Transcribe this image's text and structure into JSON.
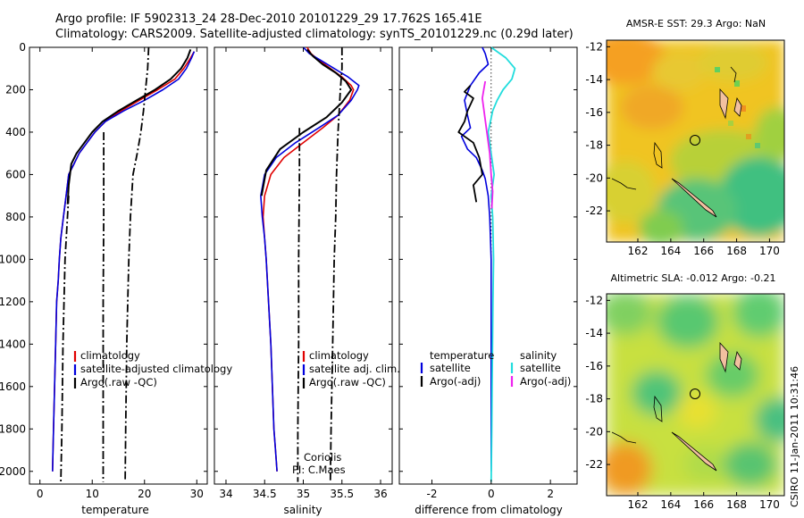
{
  "title_line1": "Argo profile: IF 5902313_24 28-Dec-2010 20101229_29 17.762S 165.41E",
  "title_line2": "Climatology: CARS2009. Satellite-adjusted climatology: synTS_20101229.nc (0.29d later)",
  "side_stamp": "CSIRO 11-Jan-2011 10:31:46",
  "colors": {
    "climatology": "#e00000",
    "satellite": "#0000dd",
    "argo": "#000000",
    "sal_sat": "#22dddd",
    "sal_argo": "#ee22ee"
  },
  "chart_data": [
    {
      "type": "line",
      "xlabel": "temperature",
      "xlim": [
        -2,
        32
      ],
      "ylim": [
        2060,
        0
      ],
      "y_reversed": true,
      "xticks": [
        0,
        10,
        20,
        30
      ],
      "yticks": [
        0,
        200,
        400,
        600,
        800,
        1000,
        1200,
        1400,
        1600,
        1800,
        2000
      ],
      "legend": {
        "entries": [
          "climatology",
          "satellite-adjusted climatology",
          "Argo(.raw -QC)"
        ],
        "placement": "lower-center"
      },
      "series": [
        {
          "name": "climatology",
          "x": [
            29.5,
            28.8,
            27.5,
            25.8,
            22.5,
            19,
            15.5,
            12.5,
            10.5,
            9,
            7.5,
            6.5,
            5.5,
            5,
            4.5,
            4,
            3.7,
            3.5,
            3.2,
            3,
            2.8,
            2.6,
            2.4
          ],
          "y": [
            20,
            50,
            100,
            150,
            200,
            250,
            300,
            350,
            400,
            450,
            500,
            550,
            600,
            700,
            800,
            900,
            1000,
            1100,
            1200,
            1400,
            1600,
            1800,
            2000
          ]
        },
        {
          "name": "satellite-adjusted climatology",
          "x": [
            29.5,
            29,
            28,
            26.5,
            23.5,
            20,
            16,
            12.5,
            10.5,
            9,
            7.5,
            6.5,
            5.5,
            5,
            4.5,
            4,
            3.7,
            3.5,
            3.2,
            3,
            2.8,
            2.6,
            2.4
          ],
          "y": [
            20,
            50,
            100,
            150,
            200,
            250,
            300,
            350,
            400,
            450,
            500,
            550,
            600,
            700,
            800,
            900,
            1000,
            1100,
            1200,
            1400,
            1600,
            1800,
            2000
          ]
        },
        {
          "name": "Argo(.raw -QC)",
          "x": [
            28.8,
            28.2,
            27,
            25,
            22,
            18.5,
            15,
            12,
            10,
            8.5,
            7,
            6,
            5.5,
            5.3
          ],
          "y": [
            10,
            50,
            100,
            150,
            200,
            250,
            300,
            350,
            400,
            450,
            500,
            550,
            650,
            740
          ]
        },
        {
          "name": "",
          "x": [
            20.8,
            20.6,
            20.2,
            19.8,
            19.3,
            18.6,
            17.8,
            17.3,
            17,
            16.8,
            16.6,
            16.5,
            16.4,
            16.3
          ],
          "y": [
            0,
            100,
            200,
            300,
            400,
            500,
            600,
            800,
            1000,
            1200,
            1400,
            1600,
            1800,
            2050
          ]
        },
        {
          "name": "",
          "x": [
            12.2,
            12.2,
            12.1,
            12.1,
            12.1
          ],
          "y": [
            400,
            800,
            1200,
            1600,
            2050
          ]
        },
        {
          "name": "",
          "x": [
            5.5,
            4.8,
            4.4,
            4.2,
            4
          ],
          "y": [
            700,
            1000,
            1400,
            1800,
            2050
          ]
        }
      ]
    },
    {
      "type": "line",
      "xlabel": "salinity",
      "xlim": [
        33.85,
        36.15
      ],
      "ylim": [
        2060,
        0
      ],
      "y_reversed": true,
      "xticks": [
        34,
        34.5,
        35,
        35.5,
        36
      ],
      "legend": {
        "entries": [
          "climatology",
          "satellite adj. clim.",
          "Argo(.raw -QC)"
        ],
        "placement": "lower-center"
      },
      "annotation": [
        "Coriolis",
        "PI: C.Maes"
      ],
      "series": [
        {
          "name": "climatology",
          "x": [
            35.05,
            35.1,
            35.2,
            35.35,
            35.5,
            35.62,
            35.65,
            35.6,
            35.45,
            35.25,
            35.0,
            34.75,
            34.58,
            34.5,
            34.48,
            34.5,
            34.52,
            34.55,
            34.58,
            34.6,
            34.62,
            34.64,
            34.66
          ],
          "y": [
            0,
            30,
            60,
            100,
            140,
            180,
            200,
            250,
            320,
            380,
            450,
            520,
            600,
            700,
            800,
            900,
            1000,
            1200,
            1400,
            1600,
            1800,
            1900,
            2000
          ]
        },
        {
          "name": "satellite adj. clim.",
          "x": [
            35.0,
            35.08,
            35.22,
            35.4,
            35.58,
            35.72,
            35.7,
            35.62,
            35.45,
            35.2,
            34.9,
            34.65,
            34.5,
            34.45,
            34.47,
            34.5,
            34.52,
            34.55,
            34.58,
            34.6,
            34.62,
            34.64,
            34.66
          ],
          "y": [
            0,
            30,
            60,
            100,
            140,
            180,
            200,
            250,
            320,
            380,
            450,
            520,
            600,
            700,
            800,
            900,
            1000,
            1200,
            1400,
            1600,
            1800,
            1900,
            2000
          ]
        },
        {
          "name": "Argo(.raw -QC)",
          "x": [
            35.05,
            35.12,
            35.25,
            35.42,
            35.55,
            35.62,
            35.5,
            35.3,
            35.0,
            34.7,
            34.52,
            34.46
          ],
          "y": [
            10,
            40,
            80,
            120,
            160,
            200,
            260,
            330,
            400,
            480,
            580,
            700
          ]
        },
        {
          "name": "",
          "x": [
            35.5,
            35.5,
            35.48,
            35.45,
            35.43,
            35.42,
            35.4,
            35.38,
            35.36,
            35.35
          ],
          "y": [
            0,
            100,
            200,
            400,
            600,
            800,
            1000,
            1400,
            1800,
            2050
          ]
        },
        {
          "name": "",
          "x": [
            34.95,
            34.95,
            34.94,
            34.94,
            34.93,
            34.93
          ],
          "y": [
            380,
            600,
            1000,
            1400,
            1800,
            2050
          ]
        }
      ]
    },
    {
      "type": "line",
      "xlabel": "difference from climatology",
      "xlim": [
        -3.1,
        2.9
      ],
      "ylim": [
        2060,
        0
      ],
      "y_reversed": true,
      "xticks": [
        -2,
        0,
        2
      ],
      "legend": {
        "columns": [
          {
            "heading": "temperature",
            "entries": [
              "satellite",
              "Argo(-adj)"
            ]
          },
          {
            "heading": "salinity",
            "entries": [
              "satellite",
              "Argo(-adj)"
            ]
          }
        ],
        "placement": "lower-center"
      },
      "series": [
        {
          "name": "temperature satellite",
          "x": [
            -0.3,
            -0.2,
            -0.1,
            -0.4,
            -0.7,
            -0.9,
            -0.8,
            -0.7,
            -1.0,
            -0.8,
            -0.5,
            -0.3,
            -0.2,
            -0.1,
            -0.05,
            0.0,
            0.0,
            0.0
          ],
          "y": [
            0,
            30,
            80,
            120,
            180,
            250,
            320,
            380,
            420,
            480,
            520,
            580,
            620,
            700,
            800,
            1000,
            1500,
            2000
          ]
        },
        {
          "name": "temperature Argo(-adj)",
          "x": [
            -0.7,
            -0.9,
            -0.6,
            -0.8,
            -0.9,
            -1.1,
            -0.6,
            -0.4,
            -0.3,
            -0.6,
            -0.5
          ],
          "y": [
            180,
            210,
            240,
            300,
            350,
            400,
            450,
            520,
            600,
            650,
            730
          ]
        },
        {
          "name": "salinity satellite",
          "x": [
            0.0,
            0.5,
            0.8,
            0.7,
            0.4,
            0.2,
            0.05,
            -0.1,
            0.0,
            0.1,
            0.0,
            0.05,
            0.08,
            0.06,
            0.04,
            0.02,
            0.0
          ],
          "y": [
            0,
            50,
            100,
            150,
            200,
            250,
            300,
            400,
            500,
            600,
            700,
            800,
            1000,
            1200,
            1500,
            1800,
            2050
          ]
        },
        {
          "name": "salinity Argo(-adj)",
          "x": [
            -0.2,
            -0.25,
            -0.3,
            -0.05,
            0.0,
            0.05,
            0.02
          ],
          "y": [
            160,
            200,
            240,
            500,
            600,
            680,
            760
          ]
        }
      ]
    },
    {
      "type": "heatmap",
      "title": "AMSR-E SST: 29.3  Argo: NaN",
      "xticks": [
        162,
        164,
        166,
        168,
        170
      ],
      "yticks": [
        -12,
        -14,
        -16,
        -18,
        -20,
        -22
      ],
      "xlim": [
        160.1,
        170.9
      ],
      "ylim": [
        -23.9,
        -11.6
      ],
      "marker": {
        "lon": 165.41,
        "lat": -17.762
      }
    },
    {
      "type": "heatmap",
      "title": "Altimetric SLA: -0.012  Argo: -0.21",
      "xticks": [
        162,
        164,
        166,
        168,
        170
      ],
      "yticks": [
        -12,
        -14,
        -16,
        -18,
        -20,
        -22
      ],
      "xlim": [
        160.1,
        170.9
      ],
      "ylim": [
        -23.9,
        -11.6
      ],
      "marker": {
        "lon": 165.41,
        "lat": -17.762
      }
    }
  ]
}
